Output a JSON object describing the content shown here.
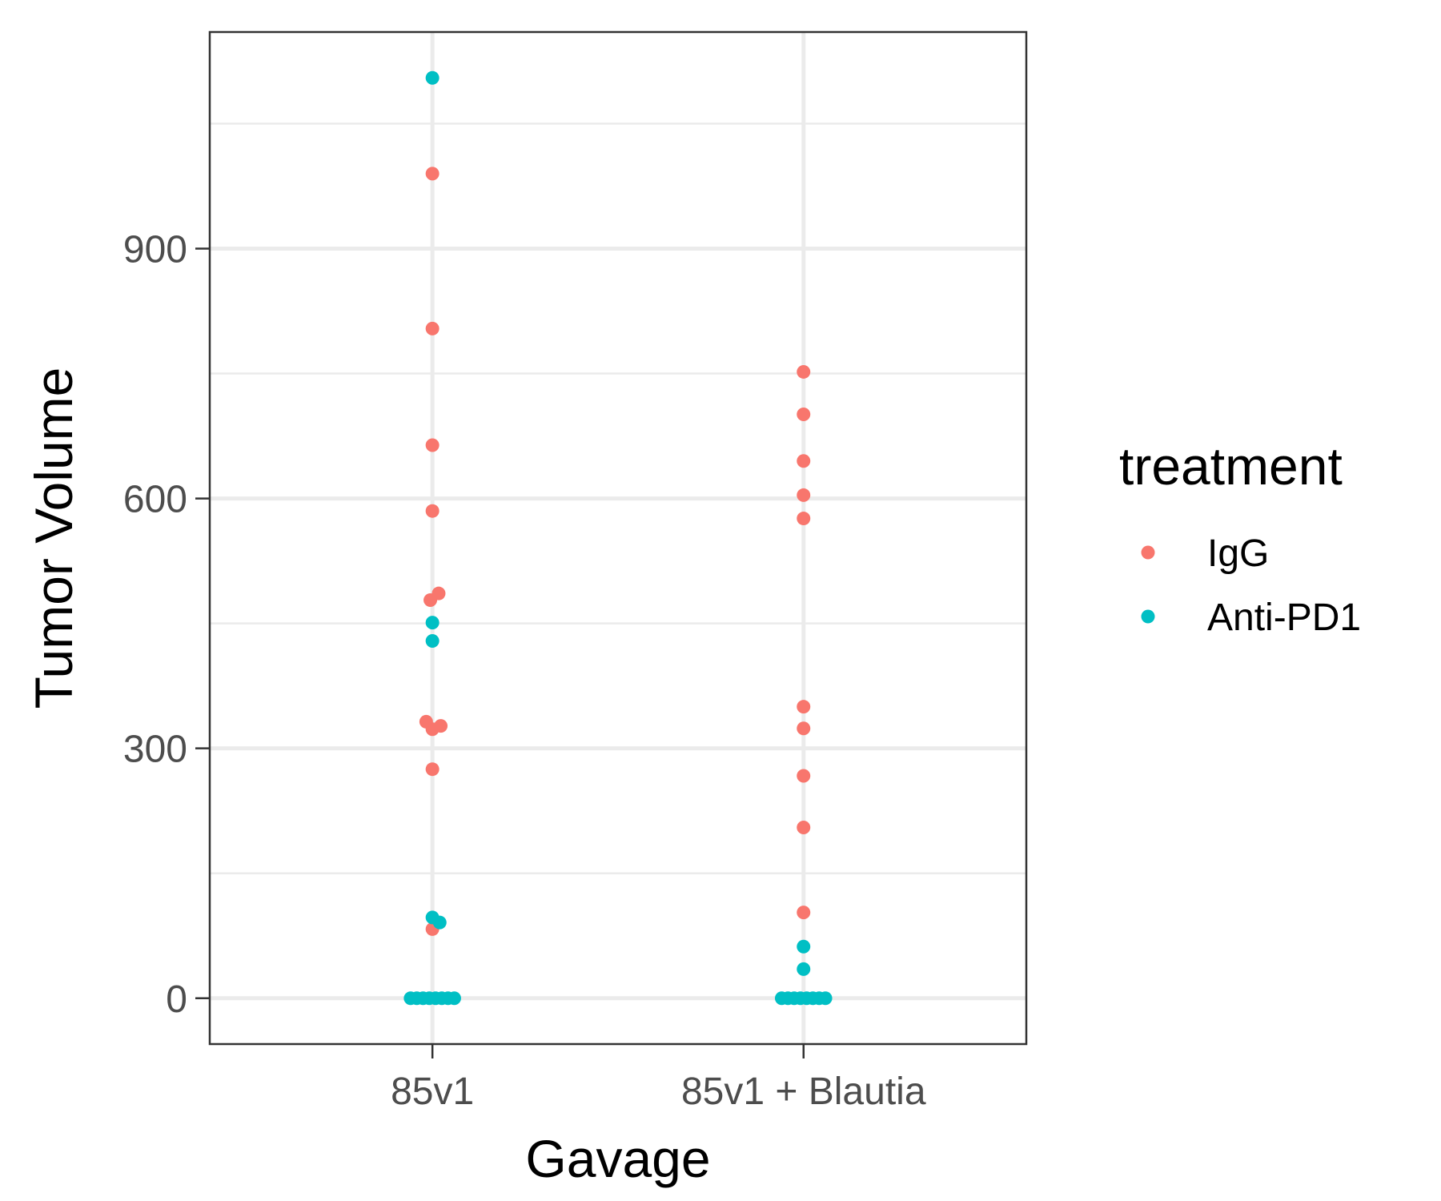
{
  "chart_data": {
    "type": "scatter",
    "xlabel": "Gavage",
    "ylabel": "Tumor Volume",
    "categories": [
      "85v1",
      "85v1 + Blautia"
    ],
    "ylim": [
      -55,
      1160
    ],
    "yticks": [
      0,
      300,
      600,
      900
    ],
    "grid": true,
    "legend": {
      "title": "treatment",
      "position": "right"
    },
    "series": [
      {
        "name": "IgG",
        "color": "#F8766D",
        "points": [
          {
            "x": "85v1",
            "y": 990,
            "jitter": 0
          },
          {
            "x": "85v1",
            "y": 804,
            "jitter": 0
          },
          {
            "x": "85v1",
            "y": 664,
            "jitter": 0
          },
          {
            "x": "85v1",
            "y": 585,
            "jitter": 0
          },
          {
            "x": "85v1",
            "y": 486,
            "jitter": 0.6
          },
          {
            "x": "85v1",
            "y": 478,
            "jitter": -0.2
          },
          {
            "x": "85v1",
            "y": 332,
            "jitter": -0.6
          },
          {
            "x": "85v1",
            "y": 327,
            "jitter": 0.8
          },
          {
            "x": "85v1",
            "y": 323,
            "jitter": 0
          },
          {
            "x": "85v1",
            "y": 275,
            "jitter": 0
          },
          {
            "x": "85v1",
            "y": 83,
            "jitter": 0
          },
          {
            "x": "85v1 + Blautia",
            "y": 752,
            "jitter": 0
          },
          {
            "x": "85v1 + Blautia",
            "y": 701,
            "jitter": 0
          },
          {
            "x": "85v1 + Blautia",
            "y": 645,
            "jitter": 0
          },
          {
            "x": "85v1 + Blautia",
            "y": 604,
            "jitter": 0
          },
          {
            "x": "85v1 + Blautia",
            "y": 576,
            "jitter": 0
          },
          {
            "x": "85v1 + Blautia",
            "y": 350,
            "jitter": 0
          },
          {
            "x": "85v1 + Blautia",
            "y": 324,
            "jitter": 0
          },
          {
            "x": "85v1 + Blautia",
            "y": 267,
            "jitter": 0
          },
          {
            "x": "85v1 + Blautia",
            "y": 205,
            "jitter": 0
          },
          {
            "x": "85v1 + Blautia",
            "y": 103,
            "jitter": 0
          }
        ]
      },
      {
        "name": "Anti-PD1",
        "color": "#00BFC4",
        "points": [
          {
            "x": "85v1",
            "y": 1105,
            "jitter": 0
          },
          {
            "x": "85v1",
            "y": 451,
            "jitter": 0
          },
          {
            "x": "85v1",
            "y": 429,
            "jitter": 0
          },
          {
            "x": "85v1",
            "y": 97,
            "jitter": 0
          },
          {
            "x": "85v1",
            "y": 91,
            "jitter": 0.7
          },
          {
            "x": "85v1",
            "y": 0,
            "jitter": -2.1
          },
          {
            "x": "85v1",
            "y": 0,
            "jitter": -1.5
          },
          {
            "x": "85v1",
            "y": 0,
            "jitter": -0.9
          },
          {
            "x": "85v1",
            "y": 0,
            "jitter": -0.3
          },
          {
            "x": "85v1",
            "y": 0,
            "jitter": 0.3
          },
          {
            "x": "85v1",
            "y": 0,
            "jitter": 0.9
          },
          {
            "x": "85v1",
            "y": 0,
            "jitter": 1.5
          },
          {
            "x": "85v1",
            "y": 0,
            "jitter": 2.1
          },
          {
            "x": "85v1 + Blautia",
            "y": 62,
            "jitter": 0
          },
          {
            "x": "85v1 + Blautia",
            "y": 35,
            "jitter": 0
          },
          {
            "x": "85v1 + Blautia",
            "y": 0,
            "jitter": -2.1
          },
          {
            "x": "85v1 + Blautia",
            "y": 0,
            "jitter": -1.5
          },
          {
            "x": "85v1 + Blautia",
            "y": 0,
            "jitter": -0.9
          },
          {
            "x": "85v1 + Blautia",
            "y": 0,
            "jitter": -0.3
          },
          {
            "x": "85v1 + Blautia",
            "y": 0,
            "jitter": 0.3
          },
          {
            "x": "85v1 + Blautia",
            "y": 0,
            "jitter": 0.9
          },
          {
            "x": "85v1 + Blautia",
            "y": 0,
            "jitter": 1.5
          },
          {
            "x": "85v1 + Blautia",
            "y": 0,
            "jitter": 2.1
          }
        ]
      }
    ]
  }
}
